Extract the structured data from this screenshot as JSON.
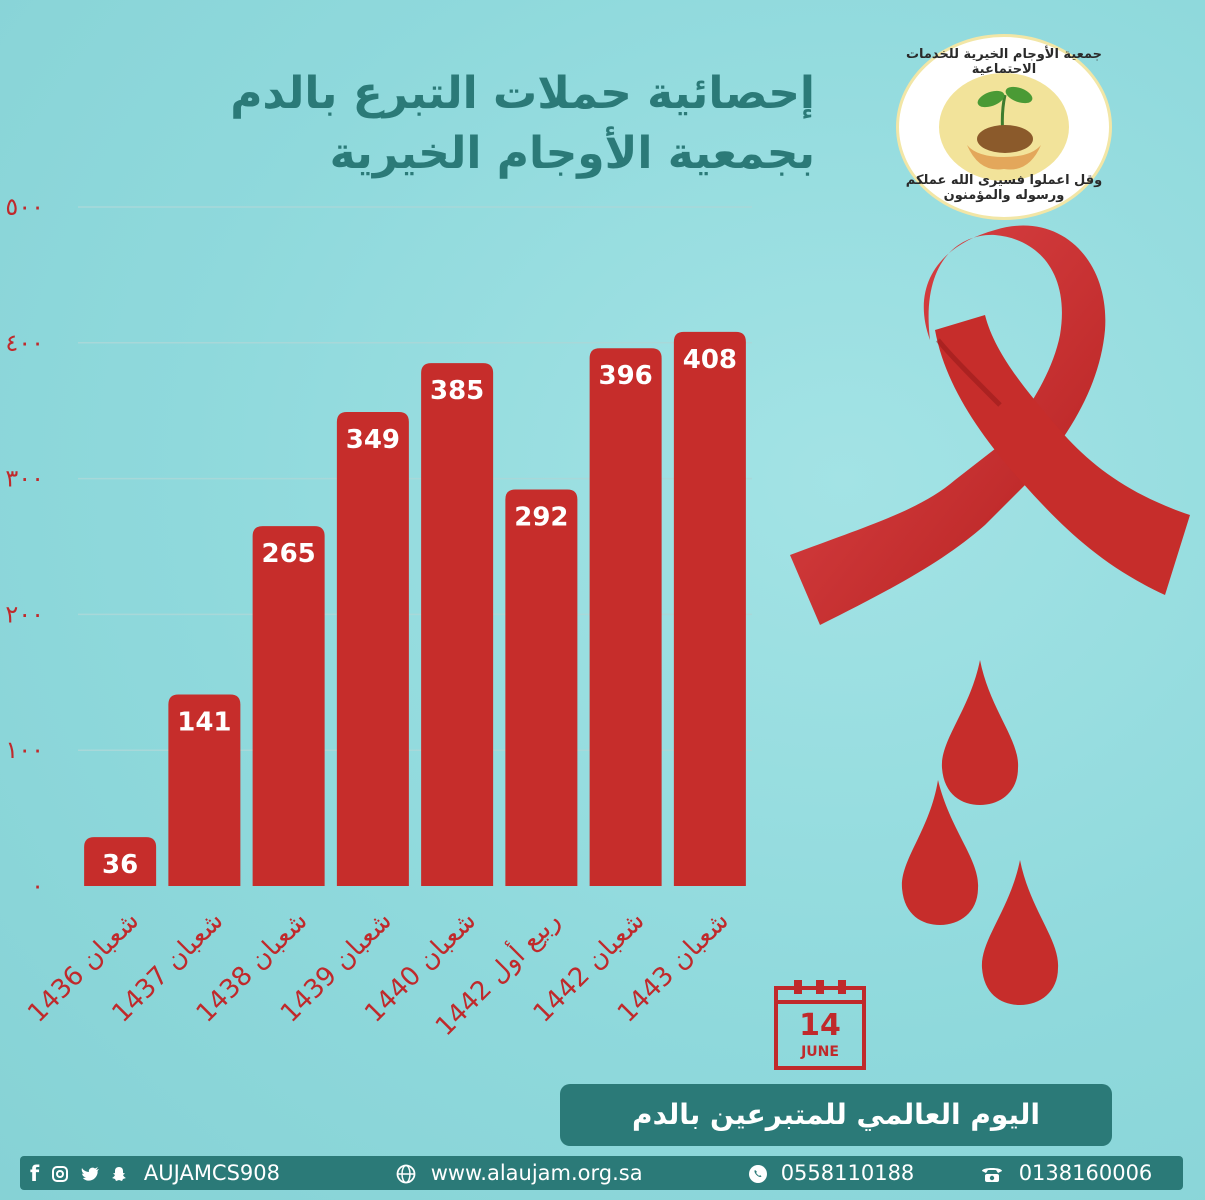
{
  "title": {
    "line1": "إحصائية حملات التبرع بالدم",
    "line2": "بجمعية الأوجام الخيرية"
  },
  "logo": {
    "top_text": "جمعية الأوجام الخيرية للخدمات الاجتماعية",
    "bottom_text": "وقل اعملوا فسيرى الله عملكم ورسوله والمؤمنون"
  },
  "chart_data": {
    "type": "bar",
    "categories": [
      "شعبان 1436",
      "شعبان 1437",
      "شعبان 1438",
      "شعبان 1439",
      "شعبان 1440",
      "ربيع أول 1442",
      "شعبان 1442",
      "شعبان 1443"
    ],
    "values": [
      36,
      141,
      265,
      349,
      385,
      292,
      396,
      408
    ],
    "y_ticks": [
      "٠",
      "١٠٠",
      "٢٠٠",
      "٣٠٠",
      "٤٠٠",
      "٥٠٠"
    ],
    "ylim": [
      0,
      500
    ],
    "grid": true,
    "bar_color": "#c62d2b"
  },
  "calendar": {
    "day": "14",
    "month": "JUNE"
  },
  "banner": "اليوم العالمي للمتبرعين بالدم",
  "footer": {
    "social": "AUJAMCS908",
    "website": "www.alaujam.org.sa",
    "whatsapp": "0558110188",
    "phone": "0138160006"
  },
  "colors": {
    "accent": "#2b7a78",
    "red": "#c62d2b",
    "background": "#8fd9dc"
  }
}
